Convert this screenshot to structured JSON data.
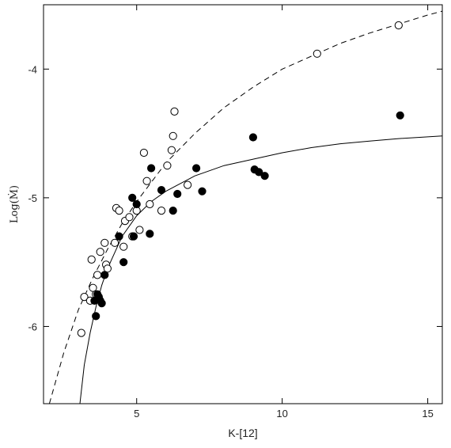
{
  "chart_data": {
    "type": "scatter",
    "xlabel": "K-[12]",
    "ylabel": "Log(Ṁ)",
    "xlim": [
      1.8,
      15.5
    ],
    "ylim": [
      -6.6,
      -3.5
    ],
    "x_ticks": [
      5,
      10,
      15
    ],
    "y_ticks": [
      -6,
      -5,
      -4
    ],
    "grid": false,
    "legend": "none",
    "series": [
      {
        "marker": "open-circle",
        "points": [
          [
            3.1,
            -6.05
          ],
          [
            3.2,
            -5.77
          ],
          [
            3.4,
            -5.8
          ],
          [
            3.45,
            -5.48
          ],
          [
            3.5,
            -5.7
          ],
          [
            3.6,
            -5.75
          ],
          [
            3.65,
            -5.6
          ],
          [
            3.75,
            -5.42
          ],
          [
            3.9,
            -5.35
          ],
          [
            3.95,
            -5.52
          ],
          [
            4.0,
            -5.55
          ],
          [
            4.25,
            -5.35
          ],
          [
            4.3,
            -5.08
          ],
          [
            4.4,
            -5.1
          ],
          [
            4.55,
            -5.38
          ],
          [
            4.6,
            -5.18
          ],
          [
            4.75,
            -5.15
          ],
          [
            4.85,
            -5.3
          ],
          [
            5.0,
            -5.1
          ],
          [
            5.1,
            -5.25
          ],
          [
            5.25,
            -4.65
          ],
          [
            5.35,
            -4.87
          ],
          [
            5.45,
            -5.05
          ],
          [
            5.85,
            -5.1
          ],
          [
            6.05,
            -4.75
          ],
          [
            6.2,
            -4.63
          ],
          [
            6.25,
            -4.52
          ],
          [
            6.3,
            -4.33
          ],
          [
            6.75,
            -4.9
          ],
          [
            11.2,
            -3.88
          ],
          [
            14.0,
            -3.66
          ]
        ]
      },
      {
        "marker": "filled-circle",
        "points": [
          [
            3.55,
            -5.8
          ],
          [
            3.6,
            -5.92
          ],
          [
            3.65,
            -5.75
          ],
          [
            3.7,
            -5.77
          ],
          [
            3.75,
            -5.8
          ],
          [
            3.8,
            -5.82
          ],
          [
            3.9,
            -5.6
          ],
          [
            4.4,
            -5.3
          ],
          [
            4.55,
            -5.5
          ],
          [
            4.85,
            -5.0
          ],
          [
            4.9,
            -5.3
          ],
          [
            5.0,
            -5.05
          ],
          [
            5.45,
            -5.28
          ],
          [
            5.5,
            -4.77
          ],
          [
            5.85,
            -4.94
          ],
          [
            6.25,
            -5.1
          ],
          [
            6.4,
            -4.97
          ],
          [
            7.05,
            -4.77
          ],
          [
            7.25,
            -4.95
          ],
          [
            9.0,
            -4.53
          ],
          [
            9.05,
            -4.78
          ],
          [
            9.2,
            -4.8
          ],
          [
            9.4,
            -4.83
          ],
          [
            14.05,
            -4.36
          ]
        ]
      }
    ],
    "curves": [
      {
        "style": "dashed",
        "points": [
          [
            2.0,
            -6.6
          ],
          [
            2.5,
            -6.2
          ],
          [
            3.0,
            -5.87
          ],
          [
            3.5,
            -5.62
          ],
          [
            4.0,
            -5.4
          ],
          [
            4.5,
            -5.2
          ],
          [
            5.0,
            -5.03
          ],
          [
            5.5,
            -4.88
          ],
          [
            6.0,
            -4.73
          ],
          [
            7.0,
            -4.5
          ],
          [
            8.0,
            -4.3
          ],
          [
            9.0,
            -4.14
          ],
          [
            10.0,
            -4.0
          ],
          [
            11.0,
            -3.9
          ],
          [
            12.0,
            -3.8
          ],
          [
            13.0,
            -3.72
          ],
          [
            14.0,
            -3.65
          ],
          [
            15.0,
            -3.58
          ],
          [
            15.5,
            -3.55
          ]
        ]
      },
      {
        "style": "solid",
        "points": [
          [
            3.05,
            -6.6
          ],
          [
            3.2,
            -6.3
          ],
          [
            3.4,
            -6.05
          ],
          [
            3.6,
            -5.85
          ],
          [
            3.8,
            -5.68
          ],
          [
            4.0,
            -5.55
          ],
          [
            4.5,
            -5.3
          ],
          [
            5.0,
            -5.14
          ],
          [
            5.5,
            -5.03
          ],
          [
            6.0,
            -4.95
          ],
          [
            7.0,
            -4.83
          ],
          [
            8.0,
            -4.75
          ],
          [
            9.0,
            -4.7
          ],
          [
            10.0,
            -4.65
          ],
          [
            11.0,
            -4.61
          ],
          [
            12.0,
            -4.58
          ],
          [
            13.0,
            -4.56
          ],
          [
            14.0,
            -4.54
          ],
          [
            15.5,
            -4.52
          ]
        ]
      }
    ]
  }
}
